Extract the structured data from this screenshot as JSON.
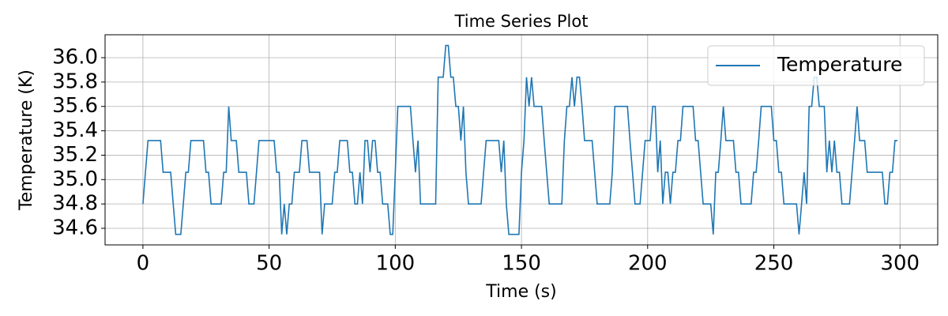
{
  "chart_data": {
    "type": "line",
    "title": "Time Series Plot",
    "x_label": "Time (s)",
    "y_label": "Temperature (K)",
    "x": [
      0,
      1,
      2,
      3,
      4,
      5,
      6,
      7,
      8,
      9,
      10,
      11,
      12,
      13,
      14,
      15,
      16,
      17,
      18,
      19,
      20,
      21,
      22,
      23,
      24,
      25,
      26,
      27,
      28,
      29,
      30,
      31,
      32,
      33,
      34,
      35,
      36,
      37,
      38,
      39,
      40,
      41,
      42,
      43,
      44,
      45,
      46,
      47,
      48,
      49,
      50,
      51,
      52,
      53,
      54,
      55,
      56,
      57,
      58,
      59,
      60,
      61,
      62,
      63,
      64,
      65,
      66,
      67,
      68,
      69,
      70,
      71,
      72,
      73,
      74,
      75,
      76,
      77,
      78,
      79,
      80,
      81,
      82,
      83,
      84,
      85,
      86,
      87,
      88,
      89,
      90,
      91,
      92,
      93,
      94,
      95,
      96,
      97,
      98,
      99,
      100,
      101,
      102,
      103,
      104,
      105,
      106,
      107,
      108,
      109,
      110,
      111,
      112,
      113,
      114,
      115,
      116,
      117,
      118,
      119,
      120,
      121,
      122,
      123,
      124,
      125,
      126,
      127,
      128,
      129,
      130,
      131,
      132,
      133,
      134,
      135,
      136,
      137,
      138,
      139,
      140,
      141,
      142,
      143,
      144,
      145,
      146,
      147,
      148,
      149,
      150,
      151,
      152,
      153,
      154,
      155,
      156,
      157,
      158,
      159,
      160,
      161,
      162,
      163,
      164,
      165,
      166,
      167,
      168,
      169,
      170,
      171,
      172,
      173,
      174,
      175,
      176,
      177,
      178,
      179,
      180,
      181,
      182,
      183,
      184,
      185,
      186,
      187,
      188,
      189,
      190,
      191,
      192,
      193,
      194,
      195,
      196,
      197,
      198,
      199,
      200,
      201,
      202,
      203,
      204,
      205,
      206,
      207,
      208,
      209,
      210,
      211,
      212,
      213,
      214,
      215,
      216,
      217,
      218,
      219,
      220,
      221,
      222,
      223,
      224,
      225,
      226,
      227,
      228,
      229,
      230,
      231,
      232,
      233,
      234,
      235,
      236,
      237,
      238,
      239,
      240,
      241,
      242,
      243,
      244,
      245,
      246,
      247,
      248,
      249,
      250,
      251,
      252,
      253,
      254,
      255,
      256,
      257,
      258,
      259,
      260,
      261,
      262,
      263,
      264,
      265,
      266,
      267,
      268,
      269,
      270,
      271,
      272,
      273,
      274,
      275,
      276,
      277,
      278,
      279,
      280,
      281,
      282,
      283,
      284,
      285,
      286,
      287,
      288,
      289,
      290,
      291,
      292,
      293,
      294,
      295,
      296,
      297,
      298,
      299
    ],
    "series": [
      {
        "name": "Temperature",
        "color": "#1f77b4",
        "values": [
          34.8,
          35.06,
          35.32,
          35.32,
          35.32,
          35.32,
          35.32,
          35.32,
          35.06,
          35.06,
          35.06,
          35.06,
          34.8,
          34.55,
          34.55,
          34.55,
          34.8,
          35.06,
          35.06,
          35.32,
          35.32,
          35.32,
          35.32,
          35.32,
          35.32,
          35.06,
          35.06,
          34.8,
          34.8,
          34.8,
          34.8,
          34.8,
          35.06,
          35.06,
          35.6,
          35.32,
          35.32,
          35.32,
          35.06,
          35.06,
          35.06,
          35.06,
          34.8,
          34.8,
          34.8,
          35.06,
          35.32,
          35.32,
          35.32,
          35.32,
          35.32,
          35.32,
          35.32,
          35.06,
          35.06,
          34.55,
          34.8,
          34.55,
          34.8,
          34.8,
          35.06,
          35.06,
          35.06,
          35.32,
          35.32,
          35.32,
          35.06,
          35.06,
          35.06,
          35.06,
          35.06,
          34.55,
          34.8,
          34.8,
          34.8,
          34.8,
          35.06,
          35.06,
          35.32,
          35.32,
          35.32,
          35.32,
          35.06,
          35.06,
          34.8,
          34.8,
          35.06,
          34.8,
          35.32,
          35.32,
          35.06,
          35.32,
          35.32,
          35.06,
          35.06,
          34.8,
          34.8,
          34.8,
          34.55,
          34.55,
          35.06,
          35.6,
          35.6,
          35.6,
          35.6,
          35.6,
          35.6,
          35.32,
          35.06,
          35.32,
          34.8,
          34.8,
          34.8,
          34.8,
          34.8,
          34.8,
          34.8,
          35.84,
          35.84,
          35.84,
          36.1,
          36.1,
          35.84,
          35.84,
          35.6,
          35.6,
          35.32,
          35.6,
          35.06,
          34.8,
          34.8,
          34.8,
          34.8,
          34.8,
          34.8,
          35.06,
          35.32,
          35.32,
          35.32,
          35.32,
          35.32,
          35.32,
          35.06,
          35.32,
          34.8,
          34.55,
          34.55,
          34.55,
          34.55,
          34.55,
          35.06,
          35.32,
          35.84,
          35.6,
          35.84,
          35.6,
          35.6,
          35.6,
          35.6,
          35.32,
          35.06,
          34.8,
          34.8,
          34.8,
          34.8,
          34.8,
          34.8,
          35.32,
          35.6,
          35.6,
          35.84,
          35.6,
          35.84,
          35.84,
          35.6,
          35.32,
          35.32,
          35.32,
          35.32,
          35.06,
          34.8,
          34.8,
          34.8,
          34.8,
          34.8,
          34.8,
          35.06,
          35.6,
          35.6,
          35.6,
          35.6,
          35.6,
          35.6,
          35.32,
          35.06,
          34.8,
          34.8,
          34.8,
          35.06,
          35.32,
          35.32,
          35.32,
          35.6,
          35.6,
          35.06,
          35.32,
          34.8,
          35.06,
          35.06,
          34.8,
          35.06,
          35.06,
          35.32,
          35.32,
          35.6,
          35.6,
          35.6,
          35.6,
          35.6,
          35.32,
          35.32,
          35.06,
          34.8,
          34.8,
          34.8,
          34.8,
          34.55,
          35.06,
          35.06,
          35.32,
          35.6,
          35.32,
          35.32,
          35.32,
          35.32,
          35.06,
          35.06,
          34.8,
          34.8,
          34.8,
          34.8,
          34.8,
          35.06,
          35.06,
          35.32,
          35.6,
          35.6,
          35.6,
          35.6,
          35.6,
          35.32,
          35.32,
          35.06,
          35.06,
          34.8,
          34.8,
          34.8,
          34.8,
          34.8,
          34.8,
          34.55,
          34.8,
          35.06,
          34.8,
          35.6,
          35.6,
          35.84,
          35.84,
          35.6,
          35.6,
          35.6,
          35.06,
          35.32,
          35.06,
          35.32,
          35.06,
          35.06,
          34.8,
          34.8,
          34.8,
          34.8,
          35.06,
          35.32,
          35.6,
          35.32,
          35.32,
          35.32,
          35.06,
          35.06,
          35.06,
          35.06,
          35.06,
          35.06,
          35.06,
          34.8,
          34.8,
          35.06,
          35.06,
          35.32,
          35.32
        ]
      }
    ],
    "xlim": [
      -15,
      314.95
    ],
    "ylim": [
      34.464,
      36.188
    ],
    "xticks": [
      0,
      50,
      100,
      150,
      200,
      250,
      300
    ],
    "yticks": [
      34.6,
      34.8,
      {
        "value": 35,
        "label": "35.0"
      },
      35.2,
      35.4,
      35.6,
      35.8,
      {
        "value": 36,
        "label": "36.0"
      }
    ],
    "grid": true,
    "legend": "upper right"
  }
}
